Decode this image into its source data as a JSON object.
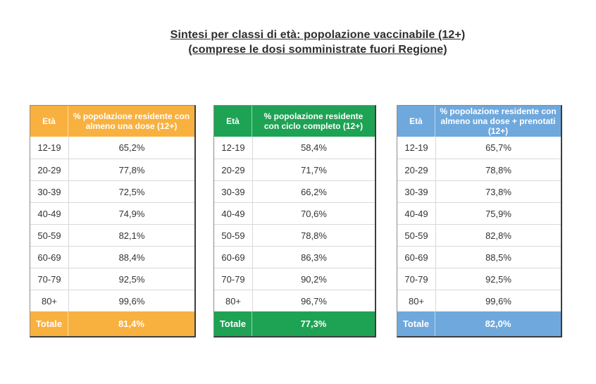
{
  "title": {
    "line1": "Sintesi per classi di età: popolazione vaccinabile (12+)",
    "line2": "(comprese le dosi somministrate fuori Regione)"
  },
  "tables": [
    {
      "name": "almeno una dose",
      "accent_color": "#F8B13F",
      "header": {
        "age_label": "Età",
        "value_label": "% popolazione residente con almeno una dose (12+)"
      },
      "rows": [
        {
          "age": "12-19",
          "value": "65,2%"
        },
        {
          "age": "20-29",
          "value": "77,8%"
        },
        {
          "age": "30-39",
          "value": "72,5%"
        },
        {
          "age": "40-49",
          "value": "74,9%"
        },
        {
          "age": "50-59",
          "value": "82,1%"
        },
        {
          "age": "60-69",
          "value": "88,4%"
        },
        {
          "age": "70-79",
          "value": "92,5%"
        },
        {
          "age": "80+",
          "value": "99,6%"
        }
      ],
      "total": {
        "label": "Totale",
        "value": "81,4%"
      }
    },
    {
      "name": "ciclo completo",
      "accent_color": "#1EA254",
      "header": {
        "age_label": "Età",
        "value_label": "% popolazione residente con ciclo completo (12+)"
      },
      "rows": [
        {
          "age": "12-19",
          "value": "58,4%"
        },
        {
          "age": "20-29",
          "value": "71,7%"
        },
        {
          "age": "30-39",
          "value": "66,2%"
        },
        {
          "age": "40-49",
          "value": "70,6%"
        },
        {
          "age": "50-59",
          "value": "78,8%"
        },
        {
          "age": "60-69",
          "value": "86,3%"
        },
        {
          "age": "70-79",
          "value": "90,2%"
        },
        {
          "age": "80+",
          "value": "96,7%"
        }
      ],
      "total": {
        "label": "Totale",
        "value": "77,3%"
      }
    },
    {
      "name": "almeno una dose + prenotati",
      "accent_color": "#6FA8DC",
      "header": {
        "age_label": "Età",
        "value_label": "% popolazione residente con almeno una dose + prenotati (12+)"
      },
      "rows": [
        {
          "age": "12-19",
          "value": "65,7%"
        },
        {
          "age": "20-29",
          "value": "78,8%"
        },
        {
          "age": "30-39",
          "value": "73,8%"
        },
        {
          "age": "40-49",
          "value": "75,9%"
        },
        {
          "age": "50-59",
          "value": "82,8%"
        },
        {
          "age": "60-69",
          "value": "88,5%"
        },
        {
          "age": "70-79",
          "value": "92,5%"
        },
        {
          "age": "80+",
          "value": "99,6%"
        }
      ],
      "total": {
        "label": "Totale",
        "value": "82,0%"
      }
    }
  ]
}
